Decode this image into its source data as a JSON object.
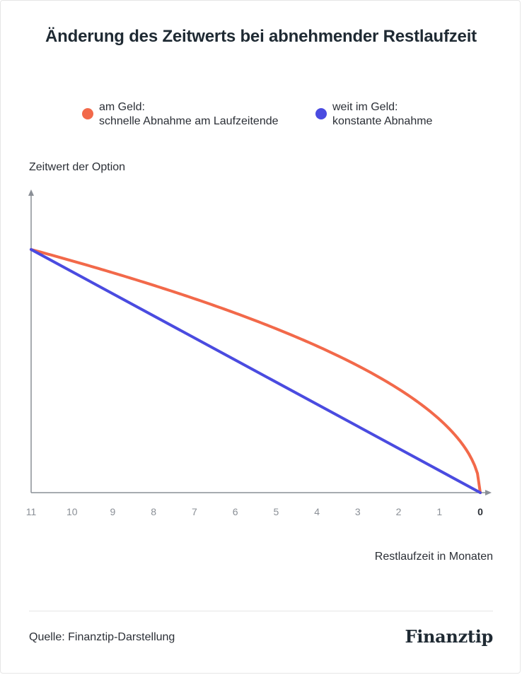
{
  "title": "Änderung des Zeitwerts bei abnehmender Restlaufzeit",
  "legend": [
    {
      "line1": "am Geld:",
      "line2": "schnelle Abnahme am Laufzeitende",
      "color": "#f2694a"
    },
    {
      "line1": "weit im Geld:",
      "line2": "konstante Abnahme",
      "color": "#4a4be0"
    }
  ],
  "chart_data": {
    "type": "line",
    "title": "Änderung des Zeitwerts bei abnehmender Restlaufzeit",
    "xlabel": "Restlaufzeit in Monaten",
    "ylabel": "Zeitwert der Option",
    "x_ticks": [
      "11",
      "10",
      "9",
      "8",
      "7",
      "6",
      "5",
      "4",
      "3",
      "2",
      "1",
      "0"
    ],
    "x_reversed": true,
    "xlim": [
      11,
      0
    ],
    "ylim": [
      0,
      1.2
    ],
    "grid": false,
    "legend_position": "top",
    "series": [
      {
        "name": "am Geld: schnelle Abnahme am Laufzeitende",
        "color": "#f2694a",
        "shape": "sqrt",
        "x": [
          11,
          10,
          9,
          8,
          7,
          6,
          5,
          4,
          3,
          2,
          1,
          0.5,
          0
        ],
        "y": [
          1.0,
          0.953,
          0.905,
          0.853,
          0.798,
          0.739,
          0.674,
          0.603,
          0.522,
          0.426,
          0.302,
          0.213,
          0.0
        ]
      },
      {
        "name": "weit im Geld: konstante Abnahme",
        "color": "#4a4be0",
        "shape": "linear",
        "x": [
          11,
          0
        ],
        "y": [
          1.0,
          0.0
        ]
      }
    ]
  },
  "footer": {
    "source": "Quelle: Finanztip-Darstellung",
    "brand": "Finanztip"
  }
}
